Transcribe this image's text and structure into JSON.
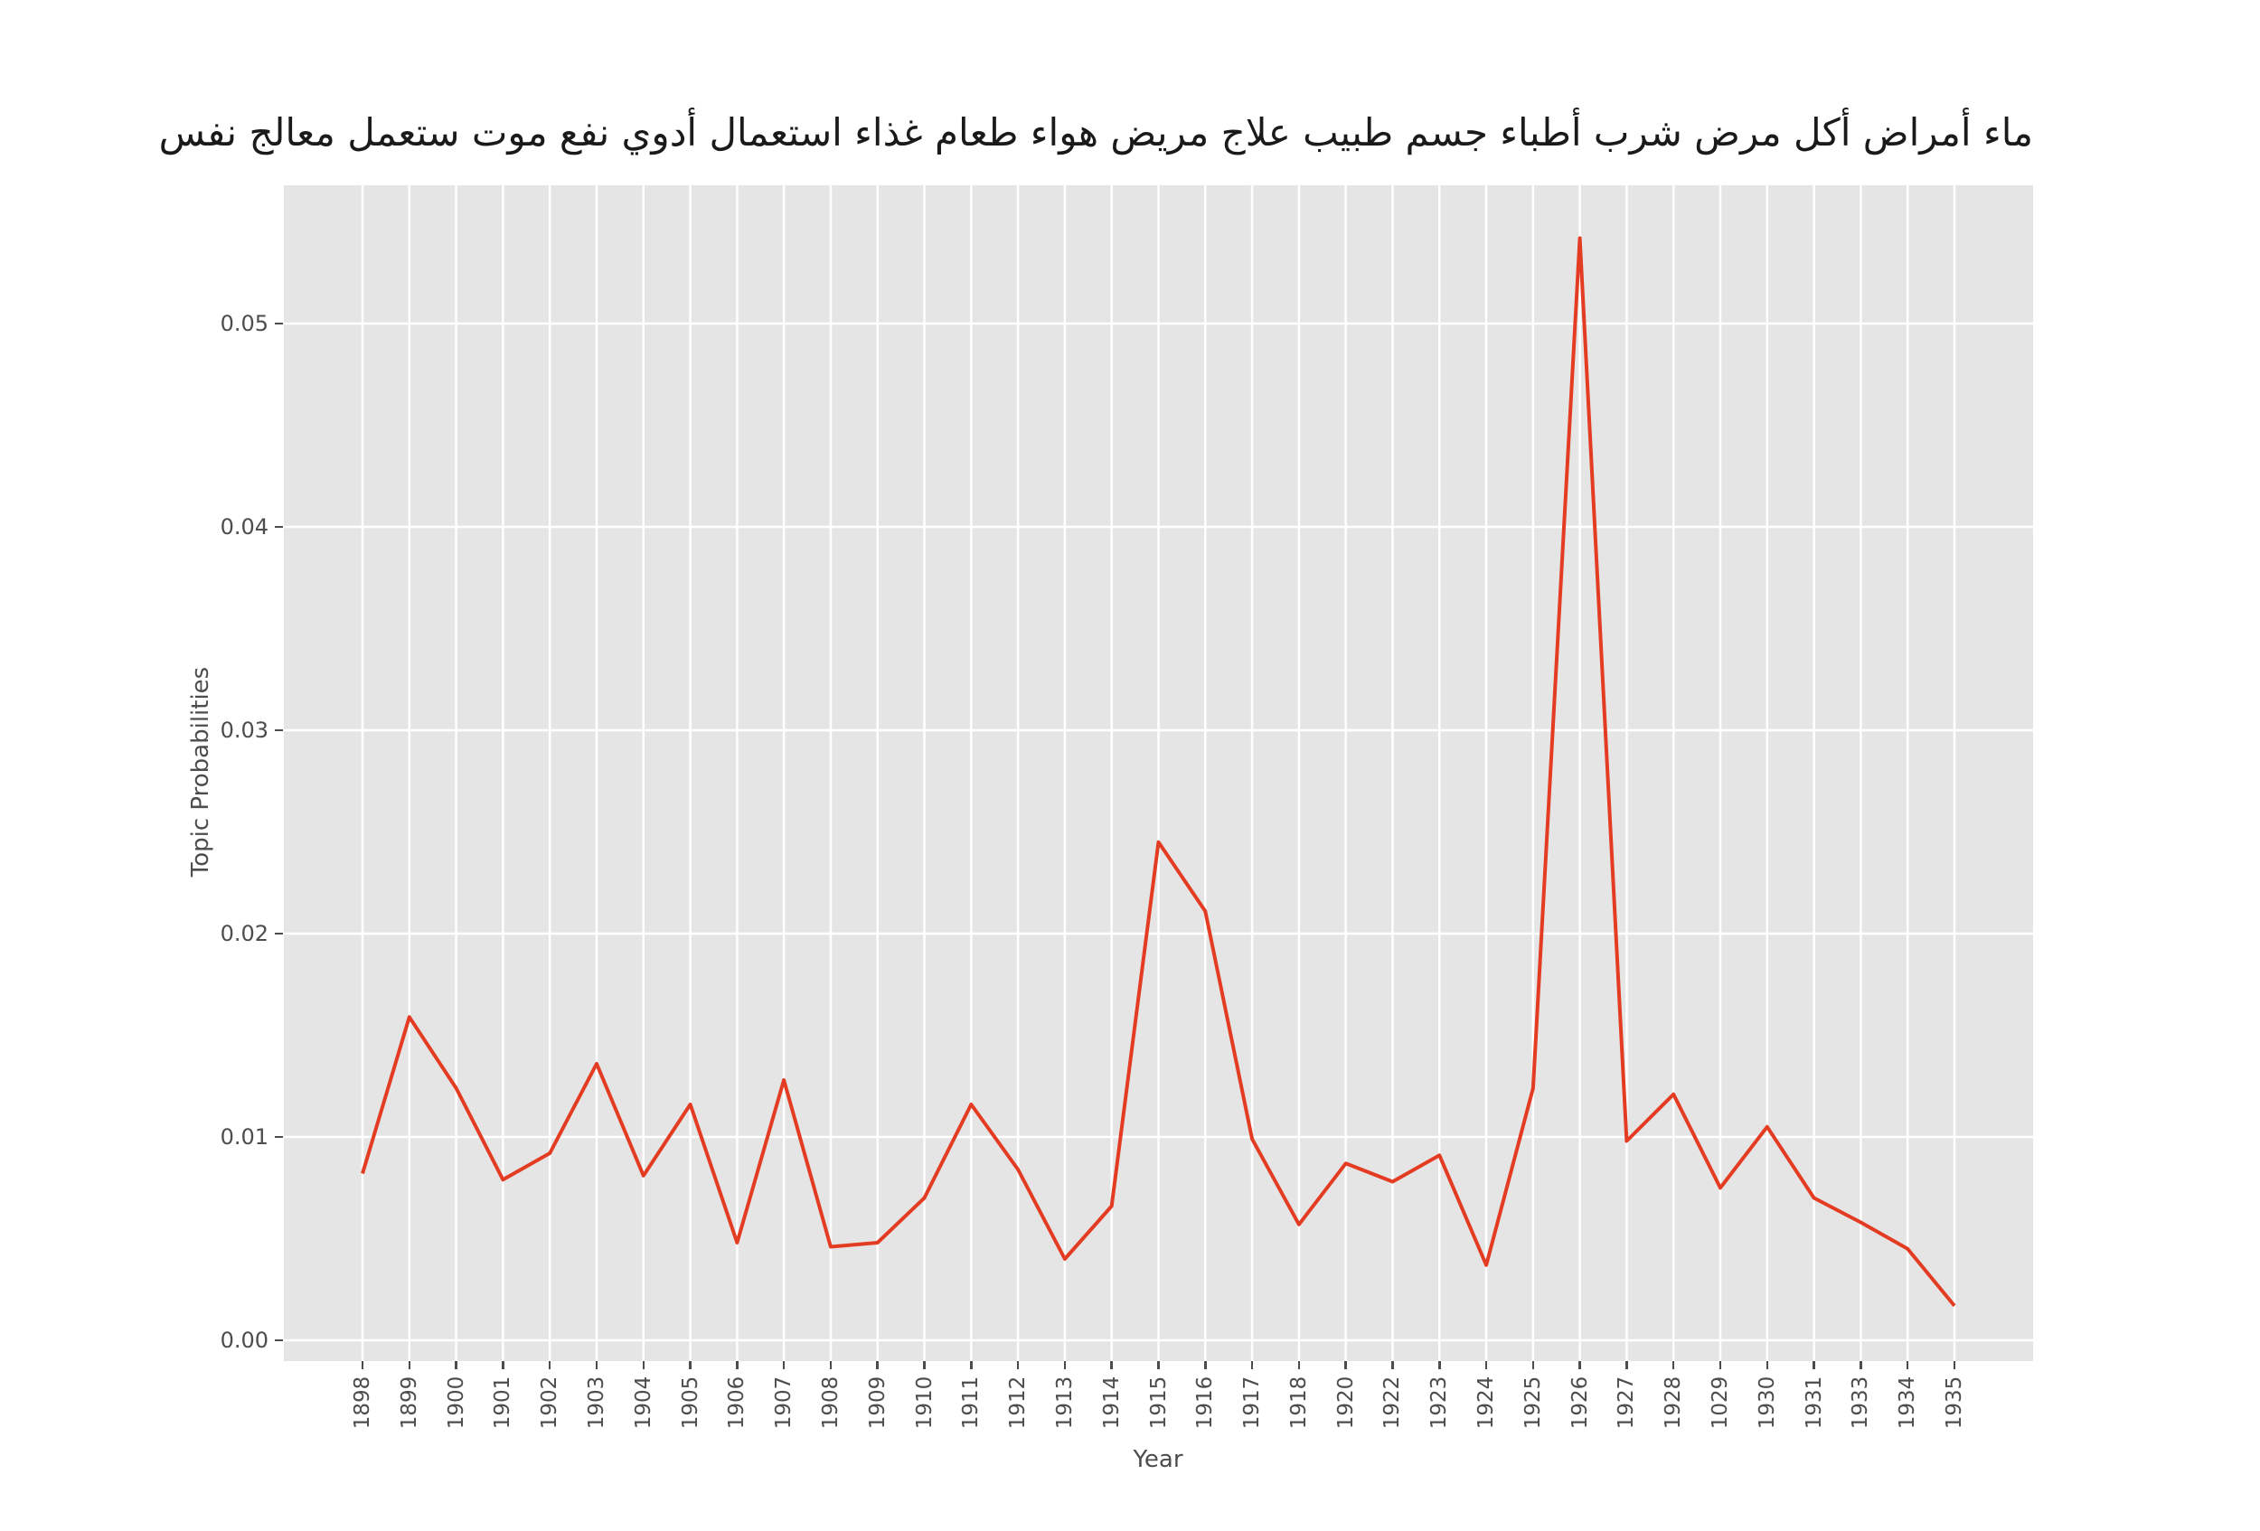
{
  "chart_data": {
    "type": "line",
    "title": "ماء أمراض أكل مرض شرب أطباء جسم طبيب علاج مريض هواء طعام غذاء استعمال أدوي نفع موت ستعمل معالج نفس",
    "xlabel": "Year",
    "ylabel": "Topic Probabilities",
    "categories": [
      "1898",
      "1899",
      "1900",
      "1901",
      "1902",
      "1903",
      "1904",
      "1905",
      "1906",
      "1907",
      "1908",
      "1909",
      "1910",
      "1911",
      "1912",
      "1913",
      "1914",
      "1915",
      "1916",
      "1917",
      "1918",
      "1920",
      "1922",
      "1923",
      "1924",
      "1925",
      "1926",
      "1927",
      "1928",
      "1029",
      "1930",
      "1931",
      "1933",
      "1934",
      "1935"
    ],
    "values": [
      0.0082,
      0.0159,
      0.0124,
      0.0079,
      0.0092,
      0.0136,
      0.0081,
      0.0116,
      0.0048,
      0.0128,
      0.0046,
      0.0048,
      0.007,
      0.0116,
      0.0084,
      0.004,
      0.0066,
      0.0245,
      0.0211,
      0.0099,
      0.0057,
      0.0087,
      0.0078,
      0.0091,
      0.0037,
      0.0124,
      0.0542,
      0.0098,
      0.0121,
      0.0075,
      0.0105,
      0.007,
      0.0058,
      0.0045,
      0.0017
    ],
    "ytick_labels": [
      "0.00",
      "0.01",
      "0.02",
      "0.03",
      "0.04",
      "0.05"
    ],
    "ytick_values": [
      0.0,
      0.01,
      0.02,
      0.03,
      0.04,
      0.05
    ],
    "ylim": [
      -0.00102,
      0.0568
    ],
    "grid": true,
    "legend": "none",
    "colors": {
      "line": "#E33C22",
      "plot_bg": "#E5E5E5",
      "grid": "#FFFFFF",
      "tick_text": "#4D4D4D",
      "title_text": "#1A1A1A"
    }
  }
}
